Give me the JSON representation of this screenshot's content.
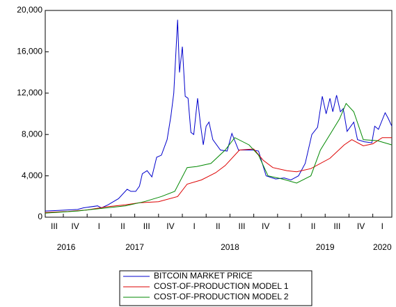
{
  "chart_data": {
    "type": "line",
    "xlim": [
      2016.56,
      2020.2
    ],
    "xticks": [
      {
        "value": 2016.5,
        "label": "III"
      },
      {
        "value": 2016.75,
        "label": "IV"
      },
      {
        "value": 2017.0,
        "label": "I"
      },
      {
        "value": 2017.25,
        "label": "II"
      },
      {
        "value": 2017.5,
        "label": "III"
      },
      {
        "value": 2017.75,
        "label": "IV"
      },
      {
        "value": 2018.0,
        "label": "I"
      },
      {
        "value": 2018.25,
        "label": "II"
      },
      {
        "value": 2018.5,
        "label": "III"
      },
      {
        "value": 2018.75,
        "label": "IV"
      },
      {
        "value": 2019.0,
        "label": "I"
      },
      {
        "value": 2019.25,
        "label": "II"
      },
      {
        "value": 2019.5,
        "label": "III"
      },
      {
        "value": 2019.75,
        "label": "IV"
      },
      {
        "value": 2020.0,
        "label": "I"
      }
    ],
    "years": [
      2016,
      2017,
      2018,
      2019,
      2020
    ],
    "ylim": [
      0,
      20000
    ],
    "yticks": [
      0,
      {
        "value": 4000,
        "label": "4,000"
      },
      {
        "value": 8000,
        "label": "8,000"
      },
      {
        "value": 12000,
        "label": "12,000"
      },
      {
        "value": 16000,
        "label": "16,000"
      },
      {
        "value": 20000,
        "label": "20,000"
      }
    ],
    "legend": "bottom",
    "series": [
      {
        "name": "BITCOIN MARKET PRICE",
        "color": "#0000cc",
        "x": [
          2016.56,
          2016.7,
          2016.9,
          2016.96,
          2017.11,
          2017.15,
          2017.22,
          2017.33,
          2017.42,
          2017.46,
          2017.51,
          2017.55,
          2017.58,
          2017.63,
          2017.68,
          2017.73,
          2017.78,
          2017.84,
          2017.88,
          2017.91,
          2017.95,
          2017.97,
          2018.0,
          2018.03,
          2018.06,
          2018.09,
          2018.12,
          2018.16,
          2018.19,
          2018.22,
          2018.25,
          2018.28,
          2018.32,
          2018.4,
          2018.47,
          2018.52,
          2018.59,
          2018.66,
          2018.74,
          2018.8,
          2018.88,
          2018.98,
          2019.07,
          2019.14,
          2019.22,
          2019.29,
          2019.36,
          2019.42,
          2019.47,
          2019.51,
          2019.55,
          2019.58,
          2019.62,
          2019.66,
          2019.69,
          2019.73,
          2019.8,
          2019.84,
          2019.91,
          2019.99,
          2020.02,
          2020.06,
          2020.13,
          2020.16,
          2020.2
        ],
        "values": [
          600,
          650,
          750,
          900,
          1100,
          900,
          1200,
          1800,
          2700,
          2500,
          2500,
          3000,
          4200,
          4500,
          3900,
          5800,
          6000,
          7500,
          9800,
          12000,
          19100,
          14000,
          16500,
          11700,
          11500,
          8200,
          8000,
          11500,
          9000,
          7000,
          8800,
          9200,
          7500,
          6500,
          6400,
          8100,
          6500,
          6500,
          6500,
          6400,
          4000,
          3700,
          3800,
          3600,
          4000,
          5200,
          8000,
          8700,
          11700,
          10000,
          11500,
          10200,
          11800,
          10200,
          10500,
          8300,
          9200,
          7500,
          7300,
          7200,
          8800,
          8500,
          10100,
          9600,
          8800
        ]
      },
      {
        "name": "COST-OF-PRODUCTION MODEL 1",
        "color": "#dd0000",
        "x": [
          2016.56,
          2016.8,
          2017.0,
          2017.2,
          2017.4,
          2017.55,
          2017.75,
          2017.95,
          2018.05,
          2018.2,
          2018.35,
          2018.45,
          2018.6,
          2018.75,
          2018.85,
          2018.95,
          2019.1,
          2019.2,
          2019.35,
          2019.55,
          2019.7,
          2019.78,
          2019.9,
          2020.0,
          2020.1,
          2020.2
        ],
        "values": [
          450,
          550,
          700,
          1000,
          1200,
          1400,
          1500,
          2000,
          3200,
          3600,
          4300,
          5000,
          6500,
          6600,
          5500,
          4800,
          4500,
          4400,
          4700,
          5700,
          7000,
          7500,
          6900,
          7100,
          7700,
          7700
        ]
      },
      {
        "name": "COST-OF-PRODUCTION MODEL 2",
        "color": "#008800",
        "x": [
          2016.56,
          2016.9,
          2017.1,
          2017.4,
          2017.6,
          2017.78,
          2017.92,
          2018.05,
          2018.15,
          2018.3,
          2018.45,
          2018.55,
          2018.7,
          2018.8,
          2018.9,
          2019.05,
          2019.2,
          2019.35,
          2019.45,
          2019.55,
          2019.65,
          2019.72,
          2019.8,
          2019.9,
          2020.05,
          2020.2
        ],
        "values": [
          400,
          600,
          800,
          1100,
          1500,
          2000,
          2500,
          4800,
          4900,
          5200,
          6500,
          7700,
          7000,
          6000,
          4000,
          3700,
          3300,
          4000,
          6500,
          8000,
          9500,
          11000,
          10200,
          7500,
          7400,
          7000
        ]
      }
    ]
  }
}
